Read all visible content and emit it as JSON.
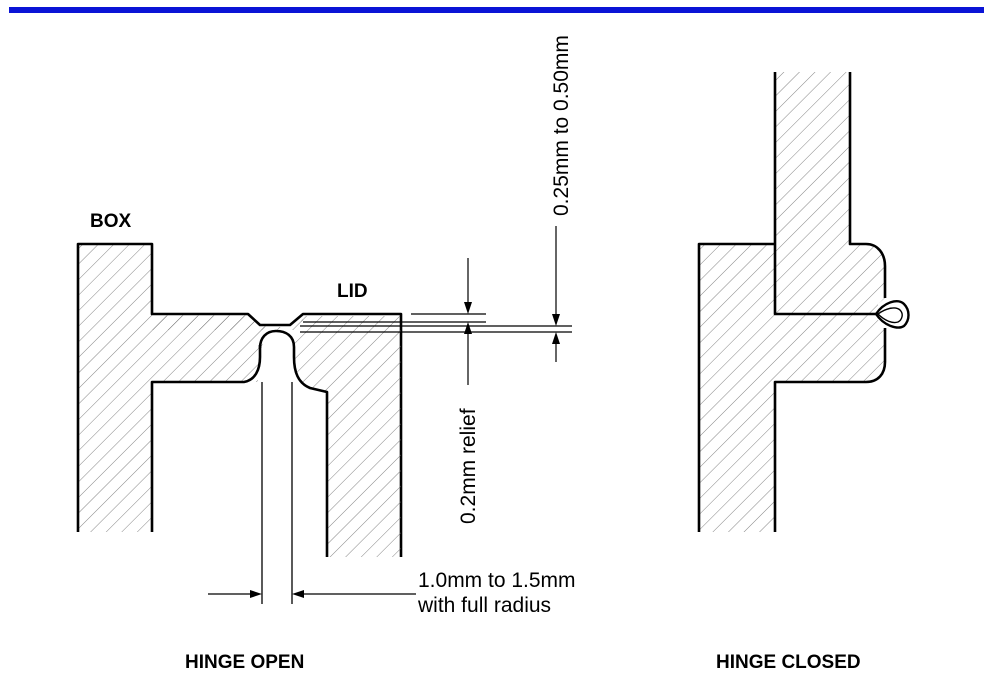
{
  "colors": {
    "top_rule": "#0b14d6",
    "outline": "#000000",
    "hatch": "#555555"
  },
  "labels": {
    "box": "BOX",
    "lid": "LID",
    "thickness": "0.25mm to 0.50mm",
    "relief": "0.2mm relief",
    "width_line1": "1.0mm to 1.5mm",
    "width_line2": "with full radius",
    "hinge_open": "HINGE OPEN",
    "hinge_closed": "HINGE CLOSED"
  }
}
